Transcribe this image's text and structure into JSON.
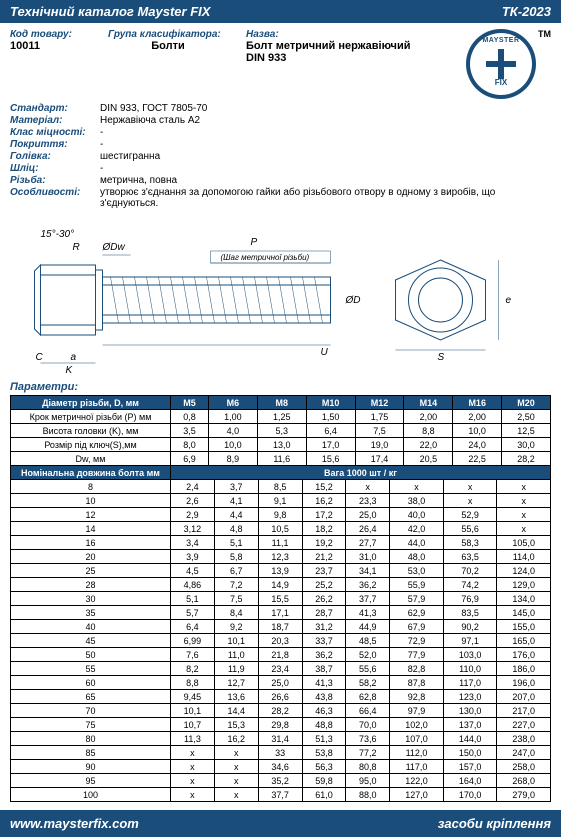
{
  "header": {
    "left": "Технічний каталог Mayster FIX",
    "right": "ТК-2023"
  },
  "top": {
    "code_label": "Код товару:",
    "code_value": "10011",
    "group_label": "Група класифікатора:",
    "group_value": "Болти",
    "name_label": "Назва:",
    "name_value": "Болт метричний нержавіючий DIN 933"
  },
  "logo": {
    "text_top": "MAYSTER",
    "text_bottom": "FIX",
    "tm": "ТМ"
  },
  "specs": [
    {
      "label": "Стандарт:",
      "value": "DIN 933, ГОСТ 7805-70"
    },
    {
      "label": "Матеріал:",
      "value": "Нержавіюча сталь А2"
    },
    {
      "label": "Клас міцності:",
      "value": "-"
    },
    {
      "label": "Покриття:",
      "value": "-"
    },
    {
      "label": "Голівка:",
      "value": "шестигранна"
    },
    {
      "label": "Шліц:",
      "value": "-"
    },
    {
      "label": "Різьба:",
      "value": "метрична, повна"
    },
    {
      "label": "Особливості:",
      "value": "утворює з'єднання за допомогою гайки або різьбового отвору в одному з виробів, що з'єднуються."
    }
  ],
  "diagram": {
    "angle_label": "15°-30°",
    "labels": [
      "R",
      "ØDw",
      "P",
      "(Шаг метричної різьби)",
      "ØD",
      "U",
      "S",
      "e",
      "C",
      "a",
      "K"
    ]
  },
  "params_label": "Параметри:",
  "table1": {
    "header_first": "Діаметр різьби, D, мм",
    "sizes": [
      "M5",
      "M6",
      "M8",
      "M10",
      "M12",
      "M14",
      "M16",
      "M20"
    ],
    "rows": [
      {
        "label": "Крок метричної різьби (P) мм",
        "vals": [
          "0,8",
          "1,00",
          "1,25",
          "1,50",
          "1,75",
          "2,00",
          "2,00",
          "2,50"
        ]
      },
      {
        "label": "Висота головки (K), мм",
        "vals": [
          "3,5",
          "4,0",
          "5,3",
          "6,4",
          "7,5",
          "8,8",
          "10,0",
          "12,5"
        ]
      },
      {
        "label": "Розмір під ключ(S),мм",
        "vals": [
          "8,0",
          "10,0",
          "13,0",
          "17,0",
          "19,0",
          "22,0",
          "24,0",
          "30,0"
        ]
      },
      {
        "label": "Dw, мм",
        "vals": [
          "6,9",
          "8,9",
          "11,6",
          "15,6",
          "17,4",
          "20,5",
          "22,5",
          "28,2"
        ]
      }
    ]
  },
  "table2": {
    "header_left": "Номінальна довжина болта мм",
    "header_right": "Вага 1000 шт / кг",
    "rows": [
      {
        "len": "8",
        "vals": [
          "2,4",
          "3,7",
          "8,5",
          "15,2",
          "x",
          "x",
          "x",
          "x"
        ]
      },
      {
        "len": "10",
        "vals": [
          "2,6",
          "4,1",
          "9,1",
          "16,2",
          "23,3",
          "38,0",
          "x",
          "x"
        ]
      },
      {
        "len": "12",
        "vals": [
          "2,9",
          "4,4",
          "9,8",
          "17,2",
          "25,0",
          "40,0",
          "52,9",
          "x"
        ]
      },
      {
        "len": "14",
        "vals": [
          "3,12",
          "4,8",
          "10,5",
          "18,2",
          "26,4",
          "42,0",
          "55,6",
          "x"
        ]
      },
      {
        "len": "16",
        "vals": [
          "3,4",
          "5,1",
          "11,1",
          "19,2",
          "27,7",
          "44,0",
          "58,3",
          "105,0"
        ]
      },
      {
        "len": "20",
        "vals": [
          "3,9",
          "5,8",
          "12,3",
          "21,2",
          "31,0",
          "48,0",
          "63,5",
          "114,0"
        ]
      },
      {
        "len": "25",
        "vals": [
          "4,5",
          "6,7",
          "13,9",
          "23,7",
          "34,1",
          "53,0",
          "70,2",
          "124,0"
        ]
      },
      {
        "len": "28",
        "vals": [
          "4,86",
          "7,2",
          "14,9",
          "25,2",
          "36,2",
          "55,9",
          "74,2",
          "129,0"
        ]
      },
      {
        "len": "30",
        "vals": [
          "5,1",
          "7,5",
          "15,5",
          "26,2",
          "37,7",
          "57,9",
          "76,9",
          "134,0"
        ]
      },
      {
        "len": "35",
        "vals": [
          "5,7",
          "8,4",
          "17,1",
          "28,7",
          "41,3",
          "62,9",
          "83,5",
          "145,0"
        ]
      },
      {
        "len": "40",
        "vals": [
          "6,4",
          "9,2",
          "18,7",
          "31,2",
          "44,9",
          "67,9",
          "90,2",
          "155,0"
        ]
      },
      {
        "len": "45",
        "vals": [
          "6,99",
          "10,1",
          "20,3",
          "33,7",
          "48,5",
          "72,9",
          "97,1",
          "165,0"
        ]
      },
      {
        "len": "50",
        "vals": [
          "7,6",
          "11,0",
          "21,8",
          "36,2",
          "52,0",
          "77,9",
          "103,0",
          "176,0"
        ]
      },
      {
        "len": "55",
        "vals": [
          "8,2",
          "11,9",
          "23,4",
          "38,7",
          "55,6",
          "82,8",
          "110,0",
          "186,0"
        ]
      },
      {
        "len": "60",
        "vals": [
          "8,8",
          "12,7",
          "25,0",
          "41,3",
          "58,2",
          "87,8",
          "117,0",
          "196,0"
        ]
      },
      {
        "len": "65",
        "vals": [
          "9,45",
          "13,6",
          "26,6",
          "43,8",
          "62,8",
          "92,8",
          "123,0",
          "207,0"
        ]
      },
      {
        "len": "70",
        "vals": [
          "10,1",
          "14,4",
          "28,2",
          "46,3",
          "66,4",
          "97,9",
          "130,0",
          "217,0"
        ]
      },
      {
        "len": "75",
        "vals": [
          "10,7",
          "15,3",
          "29,8",
          "48,8",
          "70,0",
          "102,0",
          "137,0",
          "227,0"
        ]
      },
      {
        "len": "80",
        "vals": [
          "11,3",
          "16,2",
          "31,4",
          "51,3",
          "73,6",
          "107,0",
          "144,0",
          "238,0"
        ]
      },
      {
        "len": "85",
        "vals": [
          "x",
          "x",
          "33",
          "53,8",
          "77,2",
          "112,0",
          "150,0",
          "247,0"
        ]
      },
      {
        "len": "90",
        "vals": [
          "x",
          "x",
          "34,6",
          "56,3",
          "80,8",
          "117,0",
          "157,0",
          "258,0"
        ]
      },
      {
        "len": "95",
        "vals": [
          "x",
          "x",
          "35,2",
          "59,8",
          "95,0",
          "122,0",
          "164,0",
          "268,0"
        ]
      },
      {
        "len": "100",
        "vals": [
          "x",
          "x",
          "37,7",
          "61,0",
          "88,0",
          "127,0",
          "170,0",
          "279,0"
        ]
      }
    ]
  },
  "footer": {
    "left": "www.maysterfix.com",
    "right": "засоби кріплення"
  },
  "colors": {
    "brand": "#1a4d7a",
    "text": "#000000",
    "bg": "#ffffff"
  }
}
